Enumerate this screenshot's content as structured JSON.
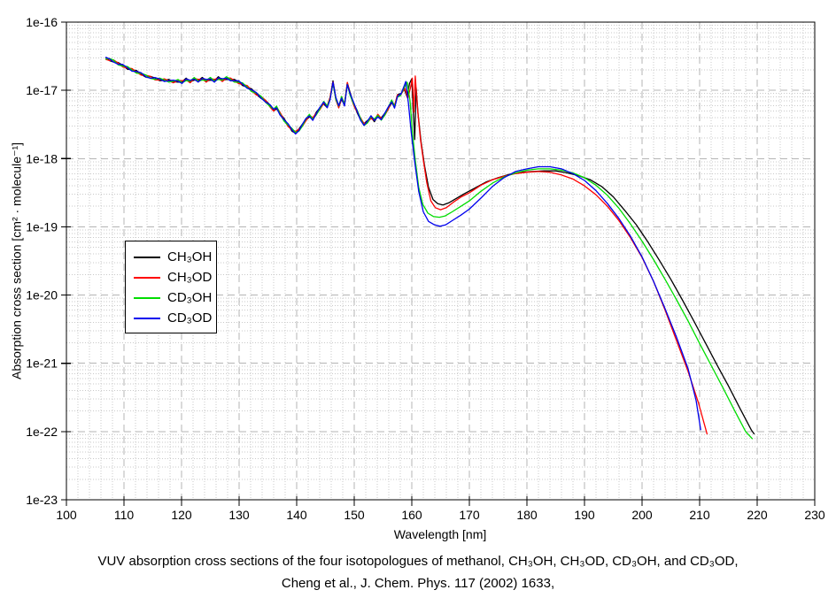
{
  "figure": {
    "caption_line1": "VUV absorption cross sections of the four isotopologues of methanol, CH₃OH, CH₃OD, CD₃OH, and CD₃OD,",
    "caption_line2": "Cheng et al., J. Chem. Phys. 117 (2002) 1633,"
  },
  "chart_data": {
    "type": "line",
    "title": "",
    "xlabel": "Wavelength [nm]",
    "ylabel": "Absorption cross section [cm² · molecule⁻¹]",
    "x_axis": {
      "min": 100,
      "max": 230,
      "major_step": 10,
      "minor_step": 2,
      "tick_labels": [
        "100",
        "110",
        "120",
        "130",
        "140",
        "150",
        "160",
        "170",
        "180",
        "190",
        "200",
        "210",
        "220",
        "230"
      ]
    },
    "y_axis": {
      "scale": "log",
      "log_min": -23,
      "log_max": -16,
      "tick_labels": [
        "1e-16",
        "1e-17",
        "1e-18",
        "1e-19",
        "1e-20",
        "1e-21",
        "1e-22",
        "1e-23"
      ]
    },
    "grid": {
      "major": true,
      "minor": true
    },
    "legend": {
      "position": "left-center",
      "items": [
        {
          "label": "CH₃OH",
          "color": "#000000"
        },
        {
          "label": "CH₃OD",
          "color": "#ff0000"
        },
        {
          "label": "CD₃OH",
          "color": "#00dd00"
        },
        {
          "label": "CD₃OD",
          "color": "#0000ee"
        }
      ]
    },
    "values_note": "Points are [wavelength nm, log10(cross section in cm2/molecule)]. From 107-158 nm all four isotopologues overlap within the linewidth; that shared segment is given once in common_segment_log10, each series diverges along its tail_log10.",
    "common_segment_log10": [
      [
        106.8,
        -16.53
      ],
      [
        107.5,
        -16.55
      ],
      [
        108.2,
        -16.57
      ],
      [
        109,
        -16.61
      ],
      [
        109.8,
        -16.64
      ],
      [
        110.6,
        -16.67
      ],
      [
        111.4,
        -16.7
      ],
      [
        112.2,
        -16.73
      ],
      [
        113,
        -16.76
      ],
      [
        113.8,
        -16.79
      ],
      [
        114.6,
        -16.81
      ],
      [
        115.4,
        -16.83
      ],
      [
        116.2,
        -16.84
      ],
      [
        117,
        -16.85
      ],
      [
        117.8,
        -16.86
      ],
      [
        118.6,
        -16.87
      ],
      [
        119.4,
        -16.86
      ],
      [
        120.1,
        -16.88
      ],
      [
        120.8,
        -16.84
      ],
      [
        121.5,
        -16.87
      ],
      [
        122.2,
        -16.83
      ],
      [
        122.9,
        -16.86
      ],
      [
        123.6,
        -16.83
      ],
      [
        124.3,
        -16.86
      ],
      [
        125,
        -16.83
      ],
      [
        125.7,
        -16.86
      ],
      [
        126.4,
        -16.82
      ],
      [
        127.1,
        -16.85
      ],
      [
        127.8,
        -16.82
      ],
      [
        128.5,
        -16.84
      ],
      [
        129.2,
        -16.86
      ],
      [
        129.9,
        -16.88
      ],
      [
        130.6,
        -16.91
      ],
      [
        131.4,
        -16.95
      ],
      [
        132.2,
        -17.0
      ],
      [
        133,
        -17.05
      ],
      [
        133.8,
        -17.1
      ],
      [
        134.6,
        -17.16
      ],
      [
        135.4,
        -17.23
      ],
      [
        136,
        -17.29
      ],
      [
        136.5,
        -17.25
      ],
      [
        137.1,
        -17.34
      ],
      [
        137.8,
        -17.43
      ],
      [
        138.5,
        -17.51
      ],
      [
        139.2,
        -17.58
      ],
      [
        139.8,
        -17.62
      ],
      [
        140.4,
        -17.58
      ],
      [
        141,
        -17.51
      ],
      [
        141.6,
        -17.43
      ],
      [
        142.2,
        -17.37
      ],
      [
        142.8,
        -17.42
      ],
      [
        143.4,
        -17.34
      ],
      [
        144,
        -17.27
      ],
      [
        144.7,
        -17.18
      ],
      [
        145.3,
        -17.24
      ],
      [
        145.8,
        -17.12
      ],
      [
        146.3,
        -16.88
      ],
      [
        146.8,
        -17.12
      ],
      [
        147.3,
        -17.24
      ],
      [
        147.8,
        -17.11
      ],
      [
        148.3,
        -17.21
      ],
      [
        148.8,
        -16.9
      ],
      [
        149.3,
        -17.06
      ],
      [
        149.9,
        -17.2
      ],
      [
        150.5,
        -17.31
      ],
      [
        151.1,
        -17.42
      ],
      [
        151.7,
        -17.5
      ],
      [
        152.3,
        -17.46
      ],
      [
        152.9,
        -17.39
      ],
      [
        153.5,
        -17.44
      ],
      [
        154.1,
        -17.37
      ],
      [
        154.7,
        -17.42
      ],
      [
        155.3,
        -17.35
      ],
      [
        155.9,
        -17.26
      ],
      [
        156.5,
        -17.16
      ],
      [
        157,
        -17.24
      ],
      [
        157.5,
        -17.08
      ],
      [
        158.1,
        -17.06
      ]
    ],
    "series": [
      {
        "name": "CH₃OH",
        "color": "#000000",
        "tail_log10": [
          [
            158.1,
            -17.06
          ],
          [
            158.7,
            -16.98
          ],
          [
            159.2,
            -17.1
          ],
          [
            159.6,
            -16.9
          ],
          [
            160.0,
            -16.83
          ],
          [
            160.25,
            -17.3
          ],
          [
            160.5,
            -17.72
          ],
          [
            160.75,
            -16.96
          ],
          [
            161.1,
            -17.35
          ],
          [
            161.6,
            -17.75
          ],
          [
            162.2,
            -18.1
          ],
          [
            162.9,
            -18.42
          ],
          [
            163.7,
            -18.6
          ],
          [
            164.5,
            -18.66
          ],
          [
            165.4,
            -18.68
          ],
          [
            166.4,
            -18.65
          ],
          [
            167.6,
            -18.59
          ],
          [
            169,
            -18.52
          ],
          [
            171,
            -18.43
          ],
          [
            173,
            -18.34
          ],
          [
            175,
            -18.28
          ],
          [
            177,
            -18.23
          ],
          [
            179,
            -18.2
          ],
          [
            181,
            -18.19
          ],
          [
            183,
            -18.18
          ],
          [
            185,
            -18.18
          ],
          [
            187,
            -18.21
          ],
          [
            189,
            -18.25
          ],
          [
            191,
            -18.31
          ],
          [
            193,
            -18.41
          ],
          [
            195,
            -18.56
          ],
          [
            197,
            -18.76
          ],
          [
            199,
            -18.97
          ],
          [
            201,
            -19.22
          ],
          [
            203,
            -19.49
          ],
          [
            205,
            -19.77
          ],
          [
            207,
            -20.07
          ],
          [
            209,
            -20.38
          ],
          [
            211,
            -20.7
          ],
          [
            213,
            -21.02
          ],
          [
            215,
            -21.33
          ],
          [
            217,
            -21.66
          ],
          [
            219,
            -21.98
          ],
          [
            219.5,
            -22.04
          ]
        ]
      },
      {
        "name": "CH₃OD",
        "color": "#ff0000",
        "tail_log10": [
          [
            158.1,
            -17.06
          ],
          [
            158.8,
            -16.97
          ],
          [
            159.3,
            -17.12
          ],
          [
            159.8,
            -16.95
          ],
          [
            160.1,
            -16.82
          ],
          [
            160.35,
            -17.32
          ],
          [
            160.6,
            -16.79
          ],
          [
            161.0,
            -17.28
          ],
          [
            161.5,
            -17.72
          ],
          [
            162.0,
            -18.02
          ],
          [
            162.6,
            -18.35
          ],
          [
            163.3,
            -18.62
          ],
          [
            164.1,
            -18.72
          ],
          [
            165.0,
            -18.75
          ],
          [
            166.0,
            -18.72
          ],
          [
            167.2,
            -18.64
          ],
          [
            168.6,
            -18.56
          ],
          [
            170,
            -18.5
          ],
          [
            172,
            -18.39
          ],
          [
            174,
            -18.31
          ],
          [
            176,
            -18.26
          ],
          [
            178,
            -18.22
          ],
          [
            180,
            -18.2
          ],
          [
            182,
            -18.19
          ],
          [
            184,
            -18.2
          ],
          [
            186,
            -18.24
          ],
          [
            188,
            -18.3
          ],
          [
            190,
            -18.4
          ],
          [
            192,
            -18.53
          ],
          [
            194,
            -18.7
          ],
          [
            196,
            -18.91
          ],
          [
            198,
            -19.16
          ],
          [
            200,
            -19.45
          ],
          [
            202,
            -19.8
          ],
          [
            204,
            -20.22
          ],
          [
            206,
            -20.67
          ],
          [
            208,
            -21.12
          ],
          [
            209.8,
            -21.58
          ],
          [
            211.3,
            -22.04
          ]
        ]
      },
      {
        "name": "CD₃OH",
        "color": "#00dd00",
        "tail_log10": [
          [
            158.1,
            -17.06
          ],
          [
            158.7,
            -16.96
          ],
          [
            159.2,
            -16.88
          ],
          [
            159.7,
            -17.15
          ],
          [
            160.1,
            -17.6
          ],
          [
            160.6,
            -18.02
          ],
          [
            161.2,
            -18.42
          ],
          [
            161.9,
            -18.67
          ],
          [
            162.8,
            -18.8
          ],
          [
            163.8,
            -18.85
          ],
          [
            164.8,
            -18.86
          ],
          [
            165.8,
            -18.84
          ],
          [
            167,
            -18.78
          ],
          [
            168.5,
            -18.7
          ],
          [
            170,
            -18.62
          ],
          [
            172,
            -18.48
          ],
          [
            174,
            -18.36
          ],
          [
            176,
            -18.27
          ],
          [
            178,
            -18.21
          ],
          [
            180,
            -18.17
          ],
          [
            182,
            -18.15
          ],
          [
            184,
            -18.15
          ],
          [
            186,
            -18.17
          ],
          [
            188,
            -18.21
          ],
          [
            190,
            -18.28
          ],
          [
            192,
            -18.39
          ],
          [
            194,
            -18.54
          ],
          [
            196,
            -18.73
          ],
          [
            198,
            -18.96
          ],
          [
            200,
            -19.21
          ],
          [
            202,
            -19.48
          ],
          [
            204,
            -19.77
          ],
          [
            206,
            -20.07
          ],
          [
            208,
            -20.38
          ],
          [
            210,
            -20.71
          ],
          [
            212,
            -21.03
          ],
          [
            214,
            -21.35
          ],
          [
            216,
            -21.68
          ],
          [
            218,
            -22.0
          ],
          [
            219.2,
            -22.11
          ]
        ]
      },
      {
        "name": "CD₃OD",
        "color": "#0000ee",
        "tail_log10": [
          [
            158.1,
            -17.06
          ],
          [
            158.6,
            -16.95
          ],
          [
            158.95,
            -16.87
          ],
          [
            159.4,
            -17.18
          ],
          [
            159.9,
            -17.62
          ],
          [
            160.5,
            -18.05
          ],
          [
            161.2,
            -18.48
          ],
          [
            162.0,
            -18.78
          ],
          [
            162.9,
            -18.92
          ],
          [
            163.9,
            -18.97
          ],
          [
            164.9,
            -18.99
          ],
          [
            165.9,
            -18.97
          ],
          [
            167,
            -18.91
          ],
          [
            168.5,
            -18.83
          ],
          [
            170,
            -18.74
          ],
          [
            172,
            -18.58
          ],
          [
            174,
            -18.41
          ],
          [
            176,
            -18.28
          ],
          [
            178,
            -18.19
          ],
          [
            180,
            -18.15
          ],
          [
            182,
            -18.12
          ],
          [
            184,
            -18.12
          ],
          [
            186,
            -18.15
          ],
          [
            188,
            -18.22
          ],
          [
            190,
            -18.32
          ],
          [
            192,
            -18.47
          ],
          [
            194,
            -18.66
          ],
          [
            196,
            -18.88
          ],
          [
            198,
            -19.14
          ],
          [
            200,
            -19.44
          ],
          [
            202,
            -19.8
          ],
          [
            204,
            -20.2
          ],
          [
            206,
            -20.62
          ],
          [
            208,
            -21.08
          ],
          [
            209.4,
            -21.55
          ],
          [
            210.2,
            -21.98
          ]
        ]
      }
    ]
  }
}
